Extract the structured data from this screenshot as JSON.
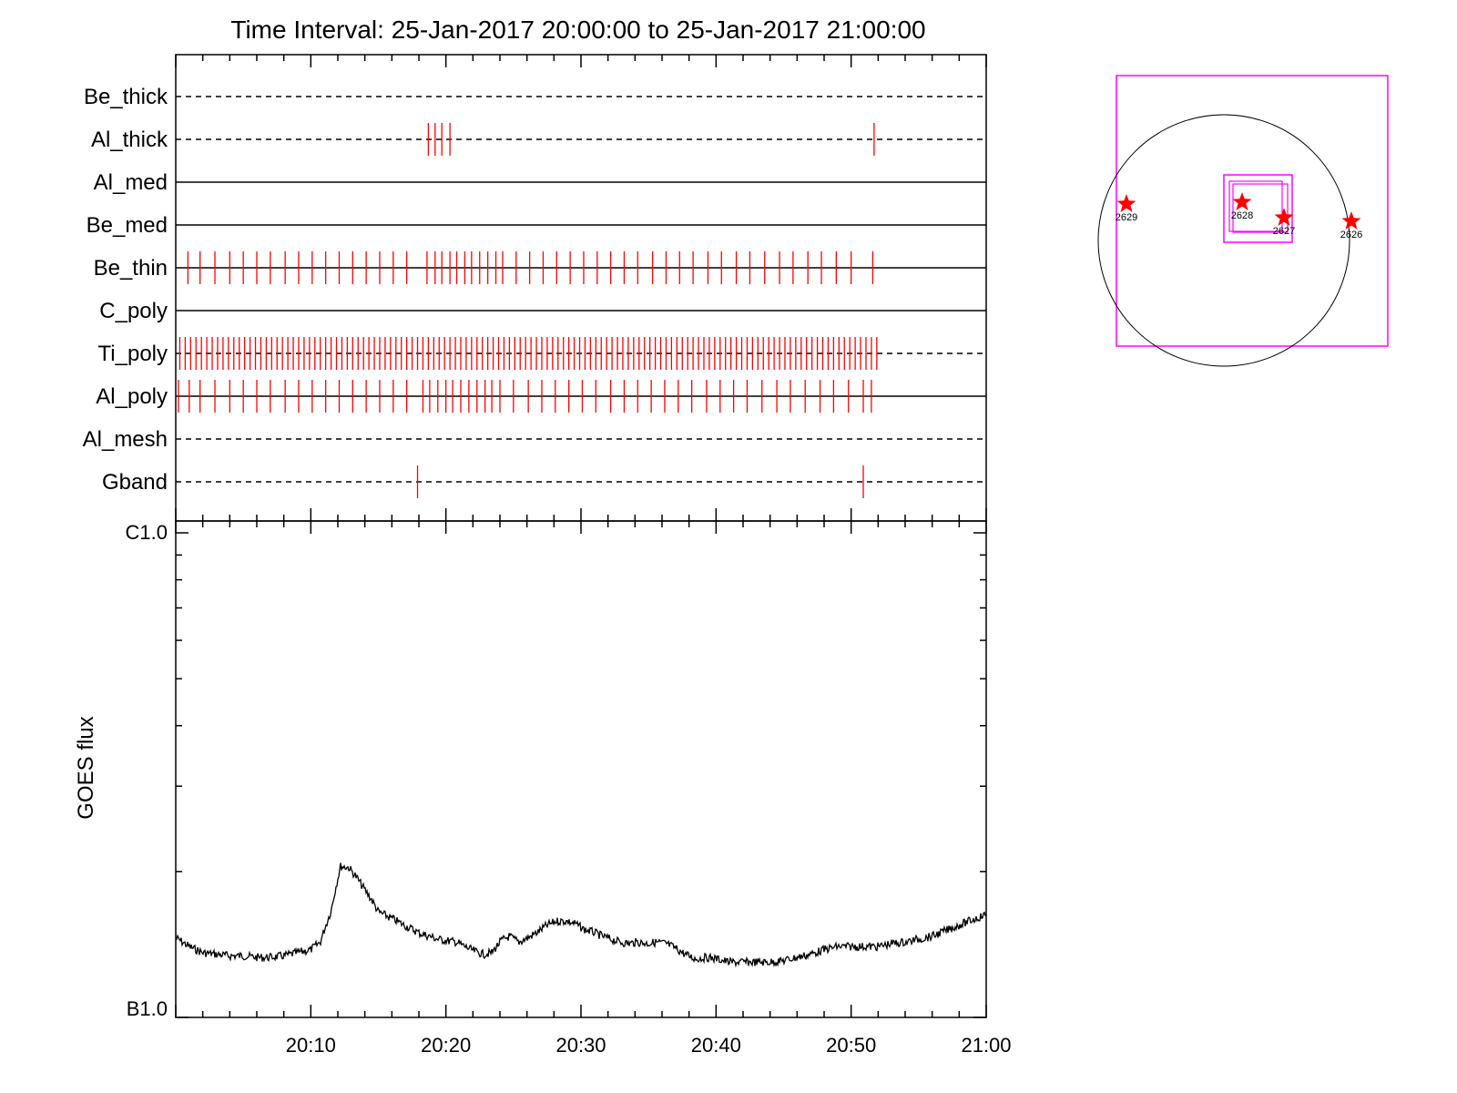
{
  "chart_data": [
    {
      "type": "timeline",
      "title": "Time Interval: 25-Jan-2017 20:00:00 to 25-Jan-2017 21:00:00",
      "x_time_range": [
        "20:00",
        "21:00"
      ],
      "x_ticks": [
        "20:10",
        "20:20",
        "20:30",
        "20:40",
        "20:50",
        "21:00"
      ],
      "grid": false,
      "legend": "none",
      "colors": {
        "line": "#000000",
        "event": "#ff0000"
      },
      "channels": [
        {
          "name": "Be_thick",
          "line_style": "dashed",
          "events_min": []
        },
        {
          "name": "Al_thick",
          "line_style": "dashed",
          "events_min": [
            18.7,
            19.2,
            19.7,
            20.3,
            51.7
          ]
        },
        {
          "name": "Al_med",
          "line_style": "solid",
          "events_min": []
        },
        {
          "name": "Be_med",
          "line_style": "solid",
          "events_min": []
        },
        {
          "name": "Be_thin",
          "line_style": "solid",
          "events_min": [
            0.9,
            1.8,
            2.9,
            4.0,
            5.0,
            6.0,
            7.0,
            8.1,
            9.1,
            10.1,
            11.1,
            12.1,
            13.1,
            14.1,
            15.1,
            16.1,
            17.1,
            18.6,
            19.2,
            19.7,
            20.3,
            20.8,
            21.4,
            21.9,
            22.5,
            23.1,
            23.7,
            24.2,
            25.2,
            26.2,
            27.2,
            28.2,
            29.2,
            30.2,
            31.2,
            32.2,
            33.2,
            34.2,
            35.3,
            36.3,
            37.3,
            38.3,
            39.4,
            40.4,
            41.5,
            42.5,
            43.6,
            44.7,
            45.7,
            46.8,
            47.8,
            48.9,
            50.0,
            51.6
          ]
        },
        {
          "name": "C_poly",
          "line_style": "solid",
          "events_min": []
        },
        {
          "name": "Ti_poly",
          "line_style": "dashed",
          "events_min": [
            0.3,
            0.7,
            1.1,
            1.5,
            1.9,
            2.3,
            2.7,
            3.1,
            3.5,
            3.9,
            4.3,
            4.7,
            5.1,
            5.5,
            5.9,
            6.3,
            6.7,
            7.1,
            7.5,
            7.9,
            8.3,
            8.7,
            9.1,
            9.5,
            9.9,
            10.3,
            10.7,
            11.1,
            11.5,
            11.9,
            12.3,
            12.7,
            13.1,
            13.5,
            13.9,
            14.3,
            14.7,
            15.1,
            15.5,
            15.9,
            16.3,
            16.7,
            17.1,
            17.5,
            17.9,
            18.3,
            18.7,
            19.1,
            19.5,
            19.9,
            20.3,
            20.7,
            21.1,
            21.5,
            21.9,
            22.3,
            22.7,
            23.1,
            23.5,
            23.9,
            24.3,
            24.7,
            25.1,
            25.5,
            25.9,
            26.3,
            26.7,
            27.1,
            27.5,
            27.9,
            28.3,
            28.7,
            29.1,
            29.5,
            29.9,
            30.3,
            30.7,
            31.1,
            31.5,
            31.9,
            32.3,
            32.7,
            33.1,
            33.5,
            33.9,
            34.3,
            34.7,
            35.1,
            35.5,
            35.9,
            36.3,
            36.7,
            37.1,
            37.5,
            37.9,
            38.3,
            38.7,
            39.1,
            39.5,
            39.9,
            40.3,
            40.7,
            41.1,
            41.5,
            41.9,
            42.3,
            42.7,
            43.1,
            43.5,
            43.9,
            44.3,
            44.7,
            45.1,
            45.5,
            45.9,
            46.3,
            46.7,
            47.1,
            47.5,
            47.9,
            48.3,
            48.7,
            49.1,
            49.5,
            49.9,
            50.3,
            50.7,
            51.1,
            51.5,
            51.9
          ]
        },
        {
          "name": "Al_poly",
          "line_style": "solid",
          "events_min": [
            0.2,
            1.0,
            1.8,
            2.9,
            4.0,
            5.0,
            6.0,
            7.0,
            8.1,
            9.1,
            10.1,
            11.1,
            12.1,
            13.1,
            14.1,
            15.1,
            16.1,
            17.1,
            18.3,
            18.8,
            19.4,
            20.0,
            20.5,
            21.1,
            21.7,
            22.3,
            22.9,
            23.4,
            24.0,
            25.0,
            26.1,
            27.1,
            28.1,
            29.1,
            30.1,
            31.1,
            32.2,
            33.2,
            34.2,
            35.2,
            36.2,
            37.2,
            38.2,
            39.3,
            40.3,
            41.3,
            42.3,
            43.4,
            44.5,
            45.5,
            46.6,
            47.7,
            48.7,
            49.8,
            50.9,
            51.5
          ]
        },
        {
          "name": "Al_mesh",
          "line_style": "dashed",
          "events_min": []
        },
        {
          "name": "Gband",
          "line_style": "dashed",
          "events_min": [
            17.9,
            50.9
          ]
        }
      ]
    },
    {
      "type": "line",
      "title": "",
      "ylabel": "GOES flux",
      "y_scale": "log",
      "y_tick_labels": [
        "C1.0",
        "B1.0"
      ],
      "ylim": [
        1e-07,
        1e-06
      ],
      "xlim": [
        "20:00",
        "21:00"
      ],
      "x_ticks": [
        "20:10",
        "20:20",
        "20:30",
        "20:40",
        "20:50",
        "21:00"
      ],
      "grid": false,
      "legend": "none",
      "series": [
        {
          "color": "#000000",
          "x_min": [
            0,
            1,
            2,
            3,
            4,
            5,
            6,
            7,
            8,
            9,
            10,
            10.7,
            11.5,
            12.2,
            12.8,
            13.3,
            13.9,
            14.5,
            15.0,
            15.6,
            16.2,
            16.9,
            17.5,
            18.1,
            18.8,
            19.4,
            20.1,
            20.8,
            21.4,
            22.1,
            22.8,
            23.4,
            24.1,
            24.7,
            25.4,
            26.1,
            26.8,
            27.5,
            28.2,
            28.9,
            29.6,
            30.2,
            30.9,
            31.6,
            32.2,
            32.9,
            33.5,
            34.2,
            34.9,
            35.6,
            36.3,
            37.0,
            37.7,
            38.5,
            39.3,
            40.1,
            41.0,
            42.0,
            43.0,
            44.0,
            45.0,
            46.0,
            47.0,
            48.0,
            49.0,
            50.0,
            51.0,
            52.0,
            53.0,
            54.0,
            55.0,
            56.0,
            57.0,
            58.0,
            59.0,
            60.0
          ],
          "y": [
            1.46e-07,
            1.4e-07,
            1.36e-07,
            1.35e-07,
            1.34e-07,
            1.34e-07,
            1.33e-07,
            1.33e-07,
            1.34e-07,
            1.36e-07,
            1.38e-07,
            1.43e-07,
            1.66e-07,
            2.05e-07,
            2.04e-07,
            1.96e-07,
            1.85e-07,
            1.75e-07,
            1.65e-07,
            1.62e-07,
            1.59e-07,
            1.55e-07,
            1.52e-07,
            1.49e-07,
            1.47e-07,
            1.45e-07,
            1.44e-07,
            1.43e-07,
            1.4e-07,
            1.37e-07,
            1.35e-07,
            1.36e-07,
            1.44e-07,
            1.47e-07,
            1.43e-07,
            1.46e-07,
            1.5e-07,
            1.55e-07,
            1.58e-07,
            1.58e-07,
            1.56e-07,
            1.52e-07,
            1.5e-07,
            1.47e-07,
            1.45e-07,
            1.43e-07,
            1.42e-07,
            1.43e-07,
            1.42e-07,
            1.43e-07,
            1.42e-07,
            1.39e-07,
            1.35e-07,
            1.32e-07,
            1.33e-07,
            1.32e-07,
            1.3e-07,
            1.3e-07,
            1.3e-07,
            1.3e-07,
            1.31e-07,
            1.33e-07,
            1.35e-07,
            1.38e-07,
            1.4e-07,
            1.4e-07,
            1.4e-07,
            1.4e-07,
            1.42e-07,
            1.43e-07,
            1.45e-07,
            1.47e-07,
            1.51e-07,
            1.55e-07,
            1.59e-07,
            1.63e-07
          ]
        }
      ]
    },
    {
      "type": "map",
      "title": "",
      "colors": {
        "fov": "#ff00ff",
        "disk": "#000000",
        "marker": "#ff0000"
      },
      "markers": [
        {
          "label": "2629"
        },
        {
          "label": "2628"
        },
        {
          "label": "2627"
        },
        {
          "label": "2626"
        }
      ]
    }
  ]
}
